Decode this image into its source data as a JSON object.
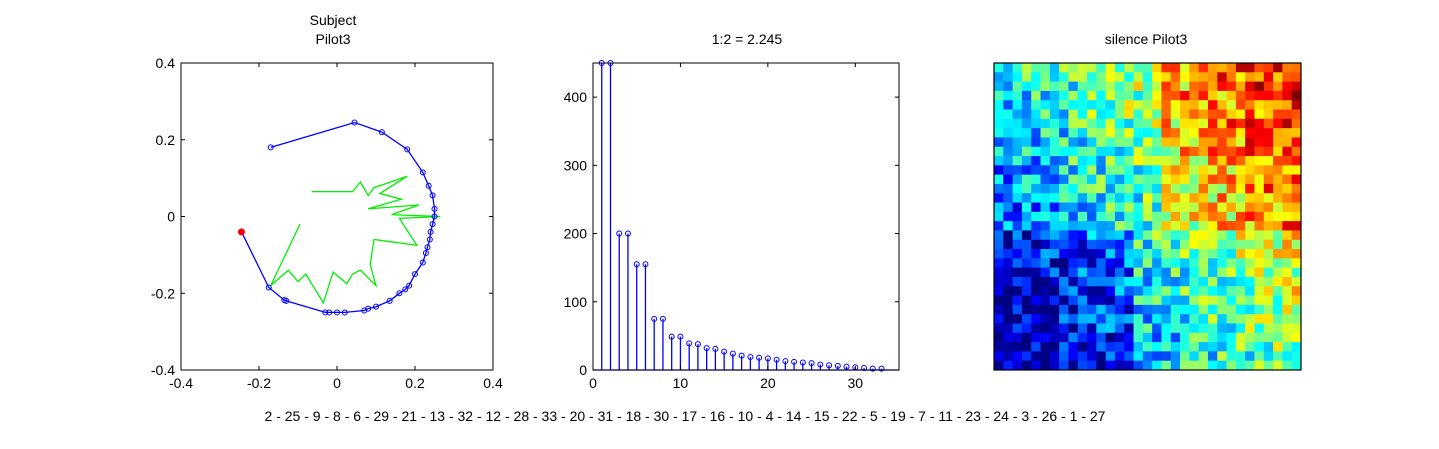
{
  "chart_data": [
    {
      "type": "scatter",
      "title_lines": [
        "Subject",
        "Pilot3"
      ],
      "xlim": [
        -0.4,
        0.4
      ],
      "ylim": [
        -0.4,
        0.4
      ],
      "xticks": [
        -0.4,
        -0.2,
        0,
        0.2,
        0.4
      ],
      "yticks": [
        -0.4,
        -0.2,
        0,
        0.2,
        0.4
      ],
      "xtick_labels": [
        "-0.4",
        "-0.2",
        "0",
        "0.2",
        "0.4"
      ],
      "ytick_labels": [
        "-0.4",
        "-0.2",
        "0",
        "0.2",
        "0.4"
      ],
      "series": [
        {
          "color": "#0000ff",
          "marker": "circle",
          "points": [
            [
              -0.17,
              0.18
            ],
            [
              0.045,
              0.245
            ],
            [
              0.115,
              0.22
            ],
            [
              0.18,
              0.175
            ],
            [
              0.22,
              0.115
            ],
            [
              0.235,
              0.08
            ],
            [
              0.245,
              0.055
            ],
            [
              0.25,
              0.02
            ],
            [
              0.25,
              0.0
            ],
            [
              0.245,
              -0.02
            ],
            [
              0.24,
              -0.04
            ],
            [
              0.238,
              -0.06
            ],
            [
              0.232,
              -0.08
            ],
            [
              0.228,
              -0.095
            ],
            [
              0.22,
              -0.12
            ],
            [
              0.2,
              -0.15
            ],
            [
              0.185,
              -0.18
            ],
            [
              0.175,
              -0.19
            ],
            [
              0.16,
              -0.2
            ],
            [
              0.135,
              -0.22
            ],
            [
              0.1,
              -0.235
            ],
            [
              0.08,
              -0.24
            ],
            [
              0.07,
              -0.245
            ],
            [
              0.02,
              -0.25
            ],
            [
              0.0,
              -0.25
            ],
            [
              -0.02,
              -0.25
            ],
            [
              -0.03,
              -0.25
            ],
            [
              -0.13,
              -0.22
            ],
            [
              -0.135,
              -0.218
            ],
            [
              -0.175,
              -0.185
            ],
            [
              -0.245,
              -0.04
            ]
          ]
        },
        {
          "color": "#ff0000",
          "marker": "filled-circle",
          "points": [
            [
              -0.245,
              -0.04
            ]
          ]
        },
        {
          "color": "#00ee00",
          "marker": "none",
          "points": [
            [
              -0.065,
              0.065
            ],
            [
              0.04,
              0.065
            ],
            [
              0.06,
              0.09
            ],
            [
              0.08,
              0.055
            ],
            [
              0.095,
              0.075
            ],
            [
              0.18,
              0.105
            ],
            [
              0.11,
              0.06
            ],
            [
              0.165,
              0.045
            ],
            [
              0.08,
              0.02
            ],
            [
              0.21,
              0.03
            ],
            [
              0.14,
              0.005
            ],
            [
              0.265,
              0.0
            ],
            [
              0.16,
              -0.005
            ],
            [
              0.205,
              -0.075
            ],
            [
              0.095,
              -0.06
            ],
            [
              0.085,
              -0.125
            ],
            [
              0.1,
              -0.18
            ],
            [
              0.06,
              -0.14
            ],
            [
              0.04,
              -0.15
            ],
            [
              0.025,
              -0.175
            ],
            [
              -0.01,
              -0.145
            ],
            [
              -0.035,
              -0.225
            ],
            [
              -0.05,
              -0.2
            ],
            [
              -0.08,
              -0.15
            ],
            [
              -0.1,
              -0.17
            ],
            [
              -0.125,
              -0.14
            ],
            [
              -0.17,
              -0.18
            ],
            [
              -0.095,
              -0.02
            ]
          ]
        }
      ]
    },
    {
      "type": "stem",
      "title": "1:2 = 2.245",
      "xlim": [
        0,
        35
      ],
      "ylim": [
        0,
        450
      ],
      "xticks": [
        0,
        10,
        20,
        30
      ],
      "yticks": [
        0,
        100,
        200,
        300,
        400
      ],
      "xtick_labels": [
        "0",
        "10",
        "20",
        "30"
      ],
      "ytick_labels": [
        "0",
        "100",
        "200",
        "300",
        "400"
      ],
      "color": "#0000ff",
      "x": [
        1,
        2,
        3,
        4,
        5,
        6,
        7,
        8,
        9,
        10,
        11,
        12,
        13,
        14,
        15,
        16,
        17,
        18,
        19,
        20,
        21,
        22,
        23,
        24,
        25,
        26,
        27,
        28,
        29,
        30,
        31,
        32,
        33
      ],
      "values": [
        450,
        450,
        200,
        200,
        155,
        155,
        75,
        75,
        49,
        49,
        39,
        38,
        32,
        31,
        27,
        24,
        21,
        19,
        18,
        17,
        15,
        13,
        12,
        11,
        10,
        8,
        7,
        6,
        5,
        4,
        3,
        2,
        2
      ]
    },
    {
      "type": "heatmap",
      "title": "silence Pilot3",
      "colormap": "jet",
      "rows": 33,
      "cols": 33,
      "vmin": 0,
      "vmax": 1,
      "description_levels": "values in [0,1], mapped with jet colormap"
    }
  ],
  "footer_text": "2 - 25 - 9 - 8 - 6 - 29 - 21 - 13 - 32 - 12 - 28 - 33 - 20 - 31 - 18 - 30 - 17 - 16 - 10 - 4 - 14 - 15 - 22 - 5 - 19 - 7 - 11 - 23 - 24 - 3 - 26 - 1 - 27"
}
